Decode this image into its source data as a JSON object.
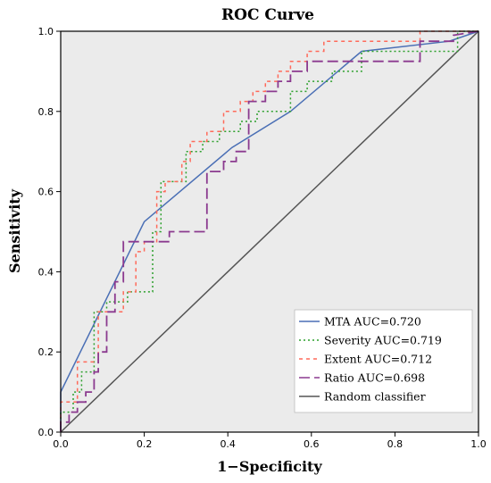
{
  "chart_data": {
    "type": "line",
    "title": "ROC Curve",
    "xlabel": "1−Specificity",
    "ylabel": "Sensitivity",
    "xlim": [
      0.0,
      1.0
    ],
    "ylim": [
      0.0,
      1.0
    ],
    "xticks": [
      "0.0",
      "0.2",
      "0.4",
      "0.6",
      "0.8",
      "1.0"
    ],
    "yticks": [
      "0.0",
      "0.2",
      "0.4",
      "0.6",
      "0.8",
      "1.0"
    ],
    "grid": false,
    "legend_position": "bottom-right",
    "background": "#ebebeb",
    "series": [
      {
        "name": "MTA AUC=0.720",
        "color": "#4a6fb5",
        "style": "solid",
        "x": [
          0.0,
          0.0,
          0.2,
          0.41,
          0.55,
          0.72,
          0.93,
          1.0
        ],
        "y": [
          0.0,
          0.1,
          0.525,
          0.71,
          0.8,
          0.95,
          0.975,
          1.0
        ]
      },
      {
        "name": "Severity AUC=0.719",
        "color": "#2ca02c",
        "style": "dotted",
        "x": [
          0.0,
          0.0,
          0.03,
          0.03,
          0.05,
          0.05,
          0.08,
          0.08,
          0.11,
          0.11,
          0.16,
          0.16,
          0.22,
          0.22,
          0.24,
          0.24,
          0.3,
          0.3,
          0.34,
          0.34,
          0.38,
          0.38,
          0.43,
          0.43,
          0.47,
          0.47,
          0.55,
          0.55,
          0.59,
          0.59,
          0.65,
          0.65,
          0.72,
          0.72,
          0.95,
          0.95,
          1.0
        ],
        "y": [
          0.0,
          0.05,
          0.05,
          0.1,
          0.1,
          0.15,
          0.15,
          0.3,
          0.3,
          0.325,
          0.325,
          0.35,
          0.35,
          0.5,
          0.5,
          0.625,
          0.625,
          0.7,
          0.7,
          0.725,
          0.725,
          0.75,
          0.75,
          0.775,
          0.775,
          0.8,
          0.8,
          0.85,
          0.85,
          0.875,
          0.875,
          0.9,
          0.9,
          0.95,
          0.95,
          1.0,
          1.0
        ]
      },
      {
        "name": "Extent AUC=0.712",
        "color": "#ff6a5a",
        "style": "dashed",
        "x": [
          0.0,
          0.0,
          0.04,
          0.04,
          0.09,
          0.09,
          0.15,
          0.15,
          0.18,
          0.18,
          0.2,
          0.2,
          0.23,
          0.23,
          0.25,
          0.25,
          0.29,
          0.29,
          0.31,
          0.31,
          0.35,
          0.35,
          0.39,
          0.39,
          0.43,
          0.43,
          0.46,
          0.46,
          0.49,
          0.49,
          0.52,
          0.52,
          0.55,
          0.55,
          0.59,
          0.59,
          0.63,
          0.63,
          0.86,
          0.86,
          1.0
        ],
        "y": [
          0.0,
          0.075,
          0.075,
          0.175,
          0.175,
          0.3,
          0.3,
          0.35,
          0.35,
          0.45,
          0.45,
          0.475,
          0.475,
          0.6,
          0.6,
          0.625,
          0.625,
          0.675,
          0.675,
          0.725,
          0.725,
          0.75,
          0.75,
          0.8,
          0.8,
          0.825,
          0.825,
          0.85,
          0.85,
          0.875,
          0.875,
          0.9,
          0.9,
          0.925,
          0.925,
          0.95,
          0.95,
          0.975,
          0.975,
          1.0,
          1.0
        ]
      },
      {
        "name": "Ratio AUC=0.698",
        "color": "#8b3a8f",
        "style": "longdash",
        "x": [
          0.0,
          0.0,
          0.02,
          0.02,
          0.04,
          0.04,
          0.06,
          0.06,
          0.08,
          0.08,
          0.09,
          0.09,
          0.11,
          0.11,
          0.13,
          0.13,
          0.15,
          0.15,
          0.2,
          0.2,
          0.26,
          0.26,
          0.35,
          0.35,
          0.39,
          0.39,
          0.42,
          0.42,
          0.45,
          0.45,
          0.49,
          0.49,
          0.52,
          0.52,
          0.55,
          0.55,
          0.59,
          0.59,
          0.86,
          0.86,
          0.94,
          0.94,
          1.0
        ],
        "y": [
          0.0,
          0.025,
          0.025,
          0.05,
          0.05,
          0.075,
          0.075,
          0.1,
          0.1,
          0.15,
          0.15,
          0.2,
          0.2,
          0.3,
          0.3,
          0.375,
          0.375,
          0.475,
          0.475,
          0.475,
          0.475,
          0.5,
          0.5,
          0.65,
          0.65,
          0.675,
          0.675,
          0.7,
          0.7,
          0.825,
          0.825,
          0.85,
          0.85,
          0.875,
          0.875,
          0.9,
          0.9,
          0.925,
          0.925,
          0.975,
          0.975,
          0.99,
          1.0
        ]
      },
      {
        "name": "Random classifier",
        "color": "#555555",
        "style": "solid",
        "x": [
          0.0,
          1.0
        ],
        "y": [
          0.0,
          1.0
        ]
      }
    ]
  }
}
